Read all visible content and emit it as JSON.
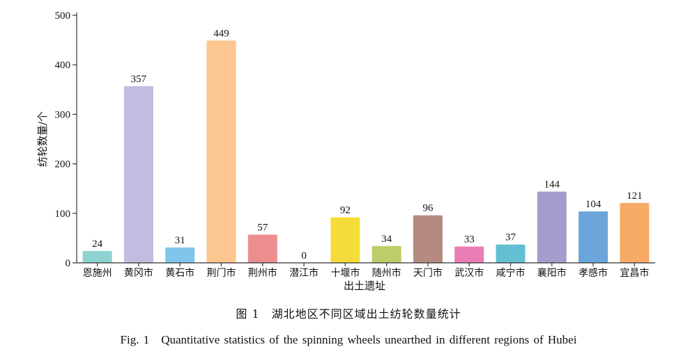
{
  "chart_data": {
    "type": "bar",
    "categories": [
      "恩施州",
      "黄冈市",
      "黄石市",
      "荆门市",
      "荆州市",
      "潜江市",
      "十堰市",
      "随州市",
      "天门市",
      "武汉市",
      "咸宁市",
      "襄阳市",
      "孝感市",
      "宜昌市"
    ],
    "values": [
      24,
      357,
      31,
      449,
      57,
      0,
      92,
      34,
      96,
      33,
      37,
      144,
      104,
      121
    ],
    "colors": [
      "#8ed3cf",
      "#c2bce0",
      "#7fc6ea",
      "#fcc690",
      "#ec8d8f",
      "#cccccc",
      "#f6dc3a",
      "#bfcc6a",
      "#b68a80",
      "#e97cb2",
      "#63bfd2",
      "#a59ccb",
      "#6ba5d9",
      "#f6ab66"
    ],
    "xlabel": "出土遗址",
    "ylabel": "纺轮数量/个",
    "ylim": [
      0,
      500
    ],
    "yticks": [
      0,
      100,
      200,
      300,
      400,
      500
    ],
    "grid": false
  },
  "captions": {
    "cn": "图 1　湖北地区不同区域出土纺轮数量统计",
    "en": "Fig. 1　Quantitative statistics of the spinning wheels unearthed in different regions of Hubei"
  }
}
